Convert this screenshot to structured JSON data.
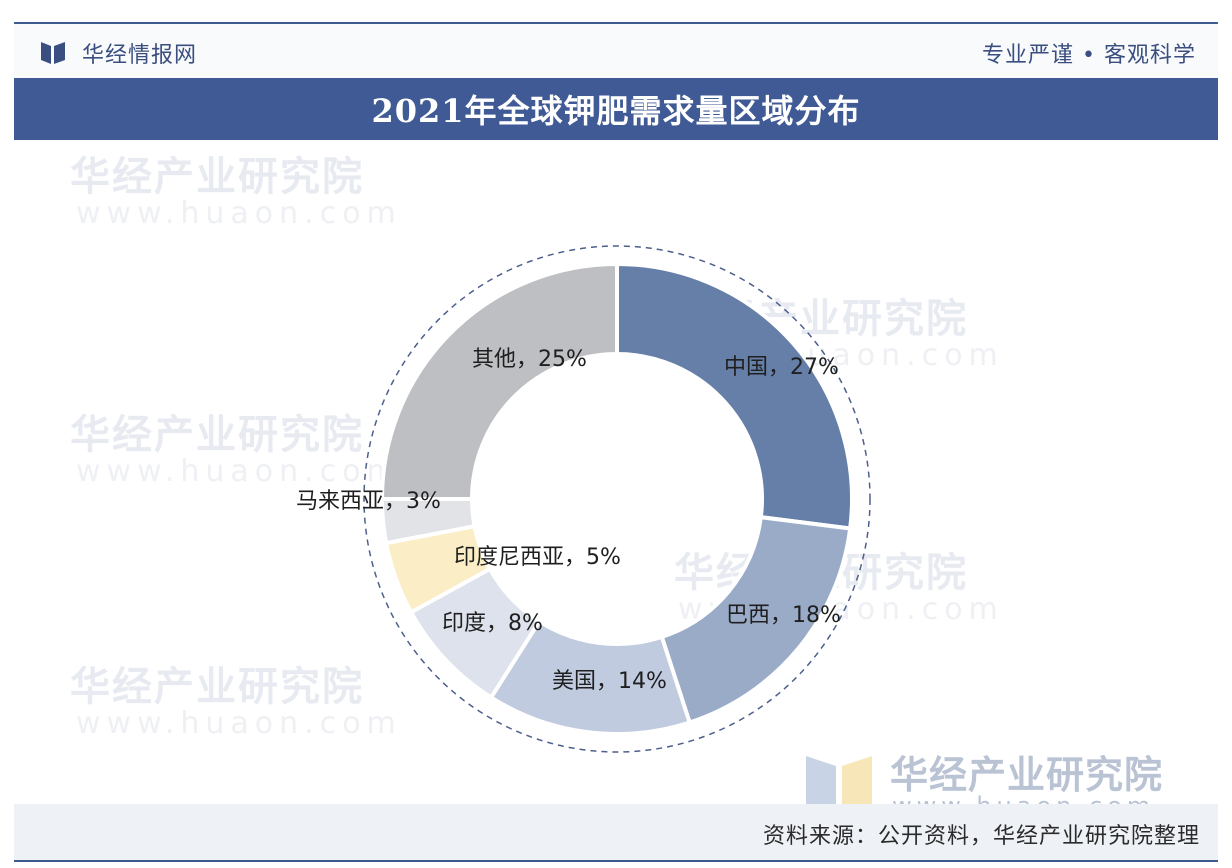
{
  "header": {
    "brand": "华经情报网",
    "motto": "专业严谨 • 客观科学"
  },
  "title": "2021年全球钾肥需求量区域分布",
  "source": "资料来源：公开资料，华经产业研究院整理",
  "watermark": {
    "cn": "华经产业研究院",
    "en": "www.huaon.com"
  },
  "brand_watermark": {
    "cn": "华经产业研究院",
    "en": "www.huaon.com"
  },
  "colors": {
    "accent": "#3f5a95",
    "china": "#667fa8",
    "brazil": "#9aabc8",
    "usa": "#c1cbe0",
    "india": "#dde2ec",
    "indonesia": "#fbeec6",
    "malaysia": "#e1e3e7",
    "others": "#bdbfc3"
  },
  "chart_data": {
    "type": "pie",
    "donut": true,
    "title": "2021年全球钾肥需求量区域分布",
    "unit": "%",
    "series": [
      {
        "name": "中国",
        "value": 27,
        "label": "中国，27%"
      },
      {
        "name": "巴西",
        "value": 18,
        "label": "巴西，18%"
      },
      {
        "name": "美国",
        "value": 14,
        "label": "美国，14%"
      },
      {
        "name": "印度",
        "value": 8,
        "label": "印度，8%"
      },
      {
        "name": "印度尼西亚",
        "value": 5,
        "label": "印度尼西亚，5%"
      },
      {
        "name": "马来西亚",
        "value": 3,
        "label": "马来西亚，3%"
      },
      {
        "name": "其他",
        "value": 25,
        "label": "其他，25%"
      }
    ]
  }
}
